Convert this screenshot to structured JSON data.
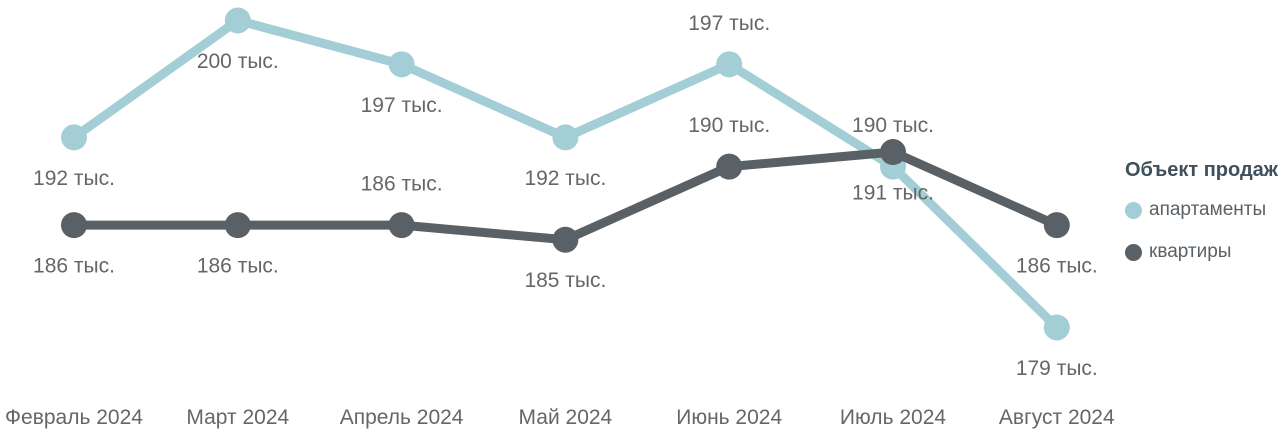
{
  "legend": {
    "title": "Объект продаж",
    "items": [
      {
        "label": "апартаменты",
        "color": "#a3ced6"
      },
      {
        "label": "квартиры",
        "color": "#5a6166"
      }
    ]
  },
  "chart_data": {
    "type": "line",
    "title": "",
    "xlabel": "",
    "ylabel": "",
    "value_unit": "тыс.",
    "grid": false,
    "legend_position": "right",
    "ylim": [
      177.8,
      201.4
    ],
    "categories": [
      "Февраль 2024",
      "Март 2024",
      "Апрель 2024",
      "Май 2024",
      "Июнь 2024",
      "Июль 2024",
      "Август 2024"
    ],
    "series": [
      {
        "name": "апартаменты",
        "color": "#a3ced6",
        "values": [
          192,
          200,
          197,
          192,
          197,
          190,
          179
        ],
        "labels": [
          "192 тыс.",
          "200 тыс.",
          "197 тыс.",
          "192 тыс.",
          "197 тыс.",
          "190 тыс.",
          "179 тыс."
        ],
        "label_placement": [
          "below",
          "below",
          "below",
          "below",
          "above",
          "above",
          "below"
        ]
      },
      {
        "name": "квартиры",
        "color": "#5a6166",
        "values": [
          186,
          186,
          186,
          185,
          190,
          191,
          186
        ],
        "labels": [
          "186 тыс.",
          "186 тыс.",
          "186 тыс.",
          "185 тыс.",
          "190 тыс.",
          "191 тыс.",
          "186 тыс."
        ],
        "label_placement": [
          "below",
          "below",
          "above",
          "below",
          "above",
          "below",
          "below"
        ]
      }
    ],
    "label_color": "#666666"
  }
}
